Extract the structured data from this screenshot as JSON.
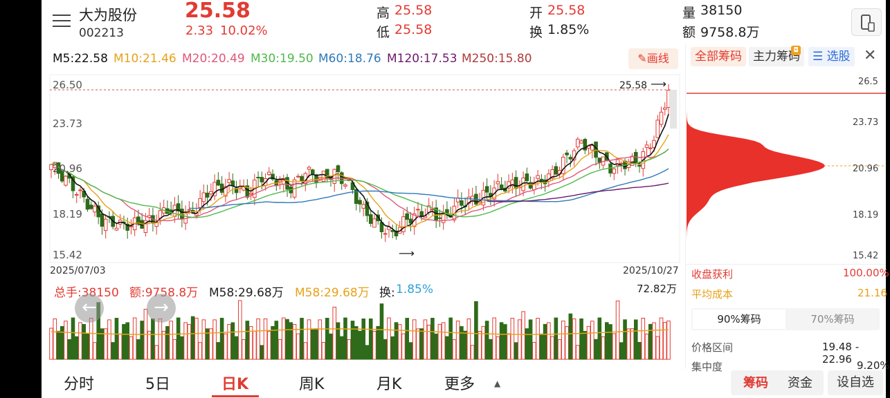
{
  "header": {
    "name": "大为股份",
    "code": "002213",
    "price": "25.58",
    "change": "2.33",
    "change_pct": "10.02%",
    "high_label": "高",
    "high": "25.58",
    "low_label": "低",
    "low": "25.58",
    "open_label": "开",
    "open": "25.58",
    "turnover_label": "换",
    "turnover": "1.85%",
    "volume_label": "量",
    "volume": "38150",
    "amount_label": "额",
    "amount": "9758.8万"
  },
  "ma": {
    "m5": "M5:22.58",
    "m10": "M10:21.46",
    "m20": "M20:20.49",
    "m30": "M30:19.50",
    "m60": "M60:18.76",
    "m120": "M120:17.53",
    "m250": "M250:15.80",
    "draw_btn": "画线"
  },
  "chart": {
    "y_ticks": [
      "26.50",
      "23.73",
      "20.96",
      "18.19",
      "15.42"
    ],
    "date_start": "2025/07/03",
    "date_end": "2025/10/27",
    "last_price_label": "25.58"
  },
  "volume": {
    "total": "总手:38150",
    "amount": "额:9758.8万",
    "m58a": "M58:29.68万",
    "m58b": "M58:29.68万",
    "turn_label": "换:",
    "turn": "1.85%",
    "max": "72.82万"
  },
  "chip": {
    "tab_all": "全部筹码",
    "tab_main": "主力筹码",
    "tab_pick": "选股",
    "prices": [
      "26.5",
      "23.73",
      "20.96",
      "18.19",
      "15.42"
    ],
    "profit_label": "收盘获利",
    "profit": "100.00%",
    "avg_label": "平均成本",
    "avg": "21.16",
    "tab90": "90%筹码",
    "tab70": "70%筹码",
    "range_label": "价格区间",
    "range": "19.48 - 22.96",
    "conc_label": "集中度",
    "conc": "9.20%",
    "btn_chip": "筹码",
    "btn_fund": "资金",
    "btn_settings": "设自选"
  },
  "tabs": [
    "分时",
    "5日",
    "日K",
    "周K",
    "月K",
    "更多"
  ],
  "chart_data": {
    "type": "candlestick",
    "title": "大为股份 002213",
    "ylim": [
      15.42,
      26.5
    ],
    "x_range": [
      "2025/07/03",
      "2025/10/27"
    ],
    "last_close": 25.58,
    "moving_averages": [
      {
        "name": "M5",
        "value": 22.58
      },
      {
        "name": "M10",
        "value": 21.46
      },
      {
        "name": "M20",
        "value": 20.49
      },
      {
        "name": "M30",
        "value": 19.5
      },
      {
        "name": "M60",
        "value": 18.76
      },
      {
        "name": "M120",
        "value": 17.53
      },
      {
        "name": "M250",
        "value": 15.8
      }
    ]
  },
  "colors": {
    "up": "#e23b33",
    "down": "#2e6b1a",
    "m5": "#111111",
    "m10": "#e7a21a",
    "m20": "#e0577a",
    "m30": "#4fb84a",
    "m60": "#2f79b8",
    "m120": "#6b1a6b",
    "m250": "#b03a3a"
  }
}
